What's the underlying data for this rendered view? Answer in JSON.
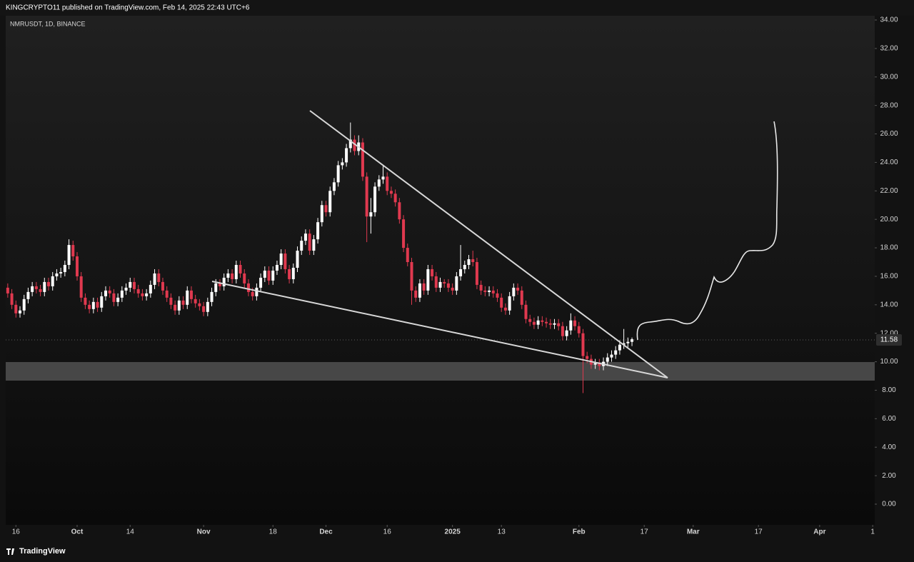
{
  "header": {
    "publisher": "KINGCRYPTO11 published on TradingView.com, Feb 14, 2025 22:43 UTC+6",
    "symbol": "NMRUSDT, 1D, BINANCE",
    "brand": "TradingView"
  },
  "chart_data": {
    "type": "candlestick",
    "up_color": "#ffffff",
    "down_color": "#e0394f",
    "ylim": [
      0,
      34
    ],
    "yticks": [
      {
        "value": 0,
        "label": "0.00"
      },
      {
        "value": 2,
        "label": "2.00"
      },
      {
        "value": 4,
        "label": "4.00"
      },
      {
        "value": 6,
        "label": "6.00"
      },
      {
        "value": 8,
        "label": "8.00"
      },
      {
        "value": 10,
        "label": "10.00"
      },
      {
        "value": 12,
        "label": "12.00"
      },
      {
        "value": 14,
        "label": "14.00"
      },
      {
        "value": 16,
        "label": "16.00"
      },
      {
        "value": 18,
        "label": "18.00"
      },
      {
        "value": 20,
        "label": "20.00"
      },
      {
        "value": 22,
        "label": "22.00"
      },
      {
        "value": 24,
        "label": "24.00"
      },
      {
        "value": 26,
        "label": "26.00"
      },
      {
        "value": 28,
        "label": "28.00"
      },
      {
        "value": 30,
        "label": "30.00"
      },
      {
        "value": 32,
        "label": "32.00"
      },
      {
        "value": 34,
        "label": "34.00"
      }
    ],
    "xlim": [
      -0.5,
      212.5
    ],
    "xticks": [
      {
        "value": 2,
        "label": "16"
      },
      {
        "value": 17,
        "label": "Oct"
      },
      {
        "value": 30,
        "label": "14"
      },
      {
        "value": 48,
        "label": "Nov"
      },
      {
        "value": 65,
        "label": "18"
      },
      {
        "value": 78,
        "label": "Dec"
      },
      {
        "value": 93,
        "label": "16"
      },
      {
        "value": 109,
        "label": "2025"
      },
      {
        "value": 121,
        "label": "13"
      },
      {
        "value": 140,
        "label": "Feb"
      },
      {
        "value": 156,
        "label": "17"
      },
      {
        "value": 168,
        "label": "Mar"
      },
      {
        "value": 184,
        "label": "17"
      },
      {
        "value": 199,
        "label": "Apr"
      },
      {
        "value": 212,
        "label": "1"
      }
    ],
    "grid": false,
    "open": [
      15.2,
      14.8,
      14.0,
      13.4,
      13.6,
      14.4,
      14.9,
      15.3,
      15.1,
      14.9,
      15.6,
      15.3,
      16.0,
      16.2,
      16.3,
      16.8,
      18.2,
      17.4,
      16.0,
      14.5,
      14.0,
      13.7,
      14.2,
      13.8,
      14.6,
      15.0,
      14.8,
      14.2,
      14.5,
      15.0,
      15.2,
      15.6,
      15.1,
      14.8,
      14.6,
      14.8,
      15.4,
      16.2,
      15.6,
      15.0,
      14.5,
      14.0,
      13.6,
      14.3,
      14.0,
      15.0,
      14.4,
      14.1,
      13.9,
      13.5,
      14.2,
      14.9,
      15.5,
      15.3,
      15.9,
      16.2,
      15.8,
      16.8,
      16.2,
      15.5,
      14.9,
      14.6,
      15.2,
      15.9,
      16.4,
      15.7,
      16.4,
      16.8,
      17.6,
      16.5,
      15.8,
      16.6,
      17.8,
      18.5,
      19.0,
      17.8,
      18.6,
      19.8,
      21.0,
      20.5,
      22.0,
      22.6,
      23.8,
      24.0,
      25.0,
      25.6,
      24.8,
      25.4,
      23.0,
      20.2,
      20.5,
      22.3,
      22.8,
      23.0,
      22.0,
      21.8,
      21.2,
      20.0,
      18.0,
      17.0,
      15.0,
      14.5,
      15.5,
      15.0,
      16.5,
      16.0,
      15.2,
      15.6,
      15.5,
      15.2,
      15.0,
      16.0,
      16.5,
      16.8,
      17.2,
      17.0,
      15.4,
      15.0,
      14.9,
      15.0,
      14.8,
      14.5,
      13.8,
      13.6,
      14.6,
      15.2,
      15.0,
      14.0,
      13.0,
      12.8,
      12.6,
      12.9,
      12.8,
      12.7,
      12.6,
      12.7,
      12.5,
      11.8,
      12.2,
      12.9,
      12.5,
      12.0,
      10.4,
      10.2,
      9.8,
      9.9,
      9.7,
      10.0,
      10.3,
      10.5,
      10.8,
      11.2,
      11.3,
      11.4
    ],
    "high": [
      15.5,
      15.1,
      14.3,
      13.9,
      14.7,
      15.2,
      15.6,
      15.6,
      15.4,
      15.9,
      15.9,
      16.3,
      16.5,
      16.6,
      17.1,
      18.6,
      18.5,
      17.7,
      16.3,
      14.8,
      14.3,
      14.5,
      14.5,
      14.9,
      15.3,
      15.3,
      15.1,
      14.8,
      15.3,
      15.5,
      15.9,
      15.9,
      15.4,
      15.1,
      15.1,
      15.7,
      16.5,
      16.5,
      15.9,
      15.3,
      14.8,
      14.3,
      14.6,
      14.6,
      15.3,
      15.3,
      14.7,
      14.4,
      14.2,
      14.5,
      15.2,
      15.8,
      15.8,
      16.2,
      16.5,
      16.5,
      17.1,
      17.1,
      16.5,
      15.8,
      15.2,
      15.5,
      16.2,
      16.7,
      16.7,
      16.7,
      17.1,
      17.9,
      17.9,
      16.8,
      16.9,
      18.1,
      18.8,
      19.3,
      19.3,
      18.9,
      20.1,
      21.3,
      21.3,
      22.3,
      22.9,
      24.1,
      24.3,
      25.3,
      26.8,
      25.9,
      25.9,
      25.7,
      23.3,
      21.5,
      22.6,
      23.1,
      23.8,
      23.3,
      22.3,
      22.1,
      21.5,
      20.3,
      18.3,
      17.3,
      15.3,
      15.8,
      15.8,
      16.8,
      16.8,
      16.3,
      15.9,
      15.8,
      15.8,
      15.5,
      16.3,
      18.2,
      17.1,
      17.5,
      17.8,
      17.3,
      15.7,
      15.3,
      15.3,
      15.3,
      15.1,
      14.8,
      14.1,
      14.9,
      15.5,
      15.5,
      15.3,
      14.3,
      13.3,
      13.1,
      13.2,
      13.2,
      13.1,
      13.0,
      13.0,
      13.0,
      12.8,
      12.5,
      13.4,
      13.2,
      12.8,
      12.3,
      10.7,
      10.5,
      10.2,
      10.2,
      10.3,
      10.6,
      10.8,
      11.1,
      11.5,
      12.3,
      11.7,
      11.7
    ],
    "low": [
      14.5,
      13.7,
      13.1,
      13.1,
      13.3,
      14.1,
      14.6,
      14.8,
      14.6,
      14.6,
      15.0,
      15.0,
      15.7,
      15.9,
      16.0,
      16.5,
      17.1,
      15.7,
      14.2,
      13.7,
      13.4,
      13.4,
      13.5,
      13.5,
      14.3,
      14.5,
      13.9,
      13.9,
      14.2,
      14.7,
      14.9,
      14.8,
      14.5,
      14.3,
      14.3,
      14.5,
      15.1,
      15.3,
      14.7,
      14.2,
      13.7,
      13.3,
      13.3,
      13.7,
      13.7,
      14.1,
      13.8,
      13.6,
      13.2,
      13.2,
      13.9,
      14.6,
      15.0,
      15.0,
      15.6,
      15.5,
      15.5,
      15.9,
      15.2,
      14.6,
      14.3,
      14.3,
      14.9,
      15.6,
      15.4,
      15.4,
      16.1,
      16.5,
      16.2,
      15.5,
      15.5,
      16.3,
      17.5,
      18.2,
      17.5,
      17.5,
      18.3,
      19.5,
      20.2,
      20.2,
      21.7,
      22.3,
      23.5,
      23.7,
      24.7,
      24.5,
      24.5,
      22.7,
      18.4,
      19.0,
      20.2,
      22.0,
      22.5,
      21.7,
      21.5,
      20.9,
      19.7,
      17.7,
      16.7,
      14.0,
      14.2,
      14.2,
      14.7,
      14.7,
      15.7,
      14.9,
      14.9,
      15.2,
      14.9,
      14.7,
      14.7,
      15.7,
      16.2,
      16.5,
      16.7,
      15.1,
      14.7,
      14.6,
      14.6,
      14.5,
      14.2,
      13.5,
      13.3,
      13.3,
      14.3,
      14.7,
      13.7,
      12.7,
      12.5,
      12.3,
      12.3,
      12.5,
      12.4,
      12.3,
      12.3,
      12.2,
      11.5,
      11.5,
      11.9,
      12.2,
      11.7,
      7.8,
      9.9,
      9.5,
      9.5,
      9.4,
      9.4,
      9.7,
      10.0,
      10.2,
      10.5,
      10.9,
      11.0,
      11.1
    ],
    "close": [
      14.8,
      14.0,
      13.4,
      13.6,
      14.4,
      14.9,
      15.3,
      15.1,
      14.9,
      15.6,
      15.3,
      16.0,
      16.2,
      16.3,
      16.8,
      18.2,
      17.4,
      16.0,
      14.5,
      14.0,
      13.7,
      14.2,
      13.8,
      14.6,
      15.0,
      14.8,
      14.2,
      14.5,
      15.0,
      15.2,
      15.6,
      15.1,
      14.8,
      14.6,
      14.8,
      15.4,
      16.2,
      15.6,
      15.0,
      14.5,
      14.0,
      13.6,
      14.3,
      14.0,
      15.0,
      14.4,
      14.1,
      13.9,
      13.5,
      14.2,
      14.9,
      15.5,
      15.3,
      15.9,
      16.2,
      15.8,
      16.8,
      16.2,
      15.5,
      14.9,
      14.6,
      15.2,
      15.9,
      16.4,
      15.7,
      16.4,
      16.8,
      17.6,
      16.5,
      15.8,
      16.6,
      17.8,
      18.5,
      19.0,
      17.8,
      18.6,
      19.8,
      21.0,
      20.5,
      22.0,
      22.6,
      23.8,
      24.0,
      25.0,
      25.6,
      24.8,
      25.4,
      23.0,
      20.2,
      20.5,
      22.3,
      22.8,
      23.0,
      22.0,
      21.8,
      21.2,
      20.0,
      18.0,
      17.0,
      15.0,
      14.5,
      15.5,
      15.0,
      16.5,
      16.0,
      15.2,
      15.6,
      15.5,
      15.2,
      15.0,
      16.0,
      16.5,
      16.8,
      17.2,
      17.0,
      15.4,
      15.0,
      14.9,
      15.0,
      14.8,
      14.5,
      13.8,
      13.6,
      14.6,
      15.2,
      15.0,
      14.0,
      13.0,
      12.8,
      12.6,
      12.9,
      12.8,
      12.7,
      12.6,
      12.7,
      12.5,
      11.8,
      12.2,
      12.9,
      12.5,
      12.0,
      10.4,
      10.2,
      9.8,
      9.9,
      9.7,
      10.0,
      10.3,
      10.5,
      10.8,
      11.2,
      11.3,
      11.4,
      11.58
    ]
  }
}
